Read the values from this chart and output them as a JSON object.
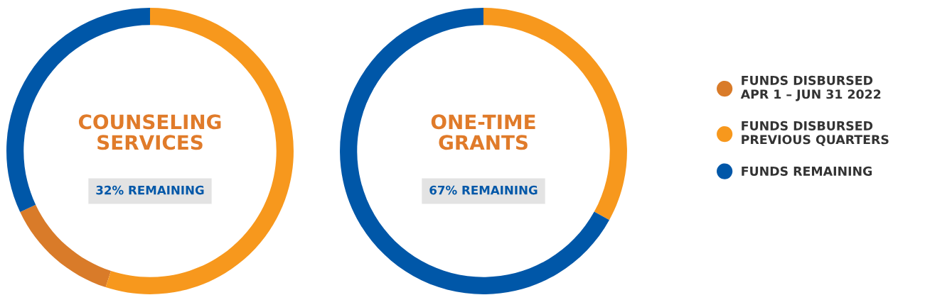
{
  "chart_data": [
    {
      "type": "donut",
      "title": "COUNSELING\nSERVICES",
      "annotations": [
        "32% REMAINING"
      ],
      "categories": [
        "FUNDS DISBURSED\nAPR 1 – JUN 31 2022",
        "FUNDS DISBURSED\nPREVIOUS QUARTERS",
        "FUNDS REMAINING"
      ],
      "values": [
        13,
        55,
        32
      ],
      "colors": [
        "#d97b29",
        "#f7981d",
        "#0057a8"
      ],
      "legend": "right"
    },
    {
      "type": "donut",
      "title": "ONE-TIME\nGRANTS",
      "annotations": [
        "67% REMAINING"
      ],
      "categories": [
        null,
        null,
        null
      ],
      "values": [
        0,
        33,
        67
      ],
      "colors": [
        "#d97b29",
        "#f7981d",
        "#0057a8"
      ]
    }
  ]
}
